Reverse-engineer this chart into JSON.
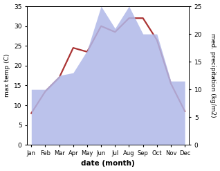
{
  "months": [
    "Jan",
    "Feb",
    "Mar",
    "Apr",
    "May",
    "Jun",
    "Jul",
    "Aug",
    "Sep",
    "Oct",
    "Nov",
    "Dec"
  ],
  "temperature": [
    8,
    13.5,
    17,
    24.5,
    23.5,
    30,
    28.5,
    32,
    32,
    26.5,
    15.5,
    8.5
  ],
  "precipitation": [
    10,
    10,
    12.5,
    13,
    17,
    25,
    21,
    25,
    20,
    20,
    11.5,
    11.5
  ],
  "temp_ylim": [
    0,
    35
  ],
  "precip_ylim": [
    0,
    25
  ],
  "temp_yticks": [
    0,
    5,
    10,
    15,
    20,
    25,
    30,
    35
  ],
  "precip_yticks": [
    0,
    5,
    10,
    15,
    20,
    25
  ],
  "xlabel": "date (month)",
  "ylabel_left": "max temp (C)",
  "ylabel_right": "med. precipitation (kg/m2)",
  "line_color": "#aa3333",
  "fill_color": "#b0b8e8",
  "fill_alpha": 0.85,
  "line_width": 1.6,
  "bg_color": "#ffffff"
}
